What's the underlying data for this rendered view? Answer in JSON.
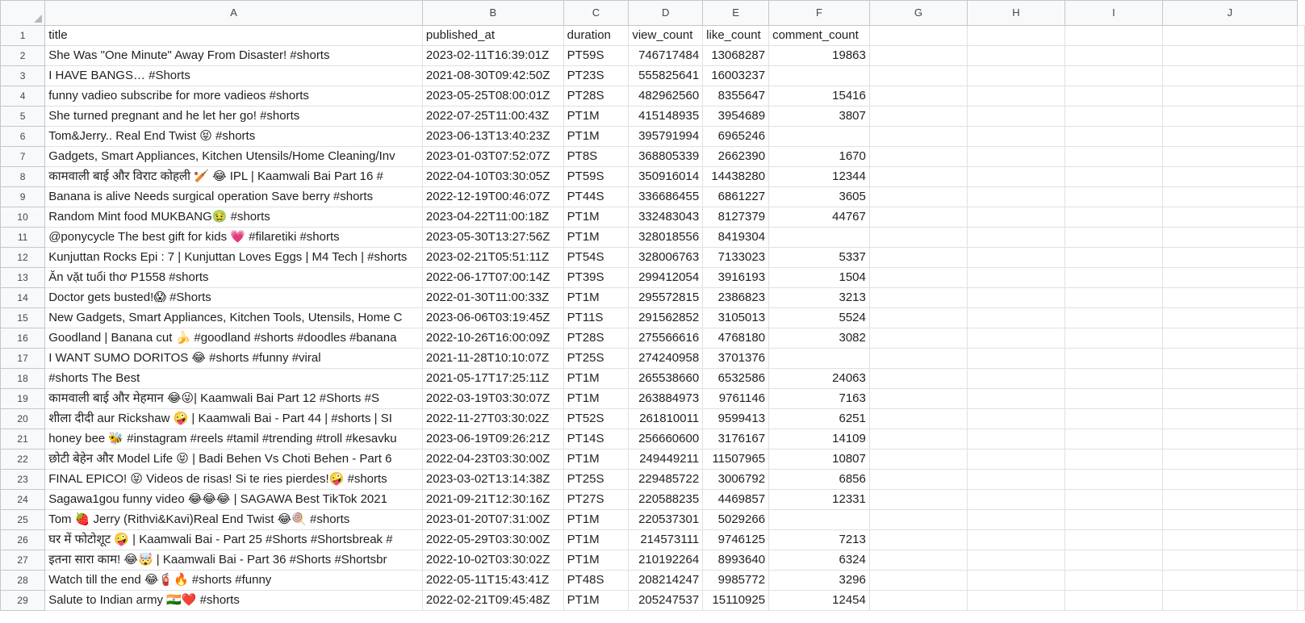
{
  "columns": [
    "A",
    "B",
    "C",
    "D",
    "E",
    "F",
    "G",
    "H",
    "I",
    "J"
  ],
  "header_row": [
    "title",
    "published_at",
    "duration",
    "view_count",
    "like_count",
    "comment_count"
  ],
  "rows": [
    {
      "n": "2",
      "title": "She Was \"One Minute\" Away From Disaster! #shorts",
      "published_at": "2023-02-11T16:39:01Z",
      "duration": "PT59S",
      "view_count": "746717484",
      "like_count": "13068287",
      "comment_count": "19863"
    },
    {
      "n": "3",
      "title": "I HAVE BANGS… #Shorts",
      "published_at": "2021-08-30T09:42:50Z",
      "duration": "PT23S",
      "view_count": "555825641",
      "like_count": "16003237",
      "comment_count": ""
    },
    {
      "n": "4",
      "title": "funny vadieo subscribe for more vadieos #shorts",
      "published_at": "2023-05-25T08:00:01Z",
      "duration": "PT28S",
      "view_count": "482962560",
      "like_count": "8355647",
      "comment_count": "15416"
    },
    {
      "n": "5",
      "title": "She turned pregnant and he let her go! #shorts",
      "published_at": "2022-07-25T11:00:43Z",
      "duration": "PT1M",
      "view_count": "415148935",
      "like_count": "3954689",
      "comment_count": "3807"
    },
    {
      "n": "6",
      "title": "Tom&Jerry.. Real End Twist 😝 #shorts",
      "published_at": "2023-06-13T13:40:23Z",
      "duration": "PT1M",
      "view_count": "395791994",
      "like_count": "6965246",
      "comment_count": ""
    },
    {
      "n": "7",
      "title": "Gadgets, Smart Appliances, Kitchen Utensils/Home Cleaning/Inv",
      "published_at": "2023-01-03T07:52:07Z",
      "duration": "PT8S",
      "view_count": "368805339",
      "like_count": "2662390",
      "comment_count": "1670"
    },
    {
      "n": "8",
      "title": "कामवाली बाई और विराट कोहली 🏏 😂 IPL | Kaamwali Bai Part 16 #",
      "published_at": "2022-04-10T03:30:05Z",
      "duration": "PT59S",
      "view_count": "350916014",
      "like_count": "14438280",
      "comment_count": "12344"
    },
    {
      "n": "9",
      "title": "Banana is alive  Needs surgical operation  Save berry #shorts",
      "published_at": "2022-12-19T00:46:07Z",
      "duration": "PT44S",
      "view_count": "336686455",
      "like_count": "6861227",
      "comment_count": "3605"
    },
    {
      "n": "10",
      "title": "Random Mint food MUKBANG🤢 #shorts",
      "published_at": "2023-04-22T11:00:18Z",
      "duration": "PT1M",
      "view_count": "332483043",
      "like_count": "8127379",
      "comment_count": "44767"
    },
    {
      "n": "11",
      "title": "@ponycycle The best gift for kids 💗 #filaretiki #shorts",
      "published_at": "2023-05-30T13:27:56Z",
      "duration": "PT1M",
      "view_count": "328018556",
      "like_count": "8419304",
      "comment_count": ""
    },
    {
      "n": "12",
      "title": "Kunjuttan Rocks Epi : 7 | Kunjuttan Loves Eggs | M4 Tech | #shorts",
      "published_at": "2023-02-21T05:51:11Z",
      "duration": "PT54S",
      "view_count": "328006763",
      "like_count": "7133023",
      "comment_count": "5337"
    },
    {
      "n": "13",
      "title": "Ăn vặt tuổi thơ P1558 #shorts",
      "published_at": "2022-06-17T07:00:14Z",
      "duration": "PT39S",
      "view_count": "299412054",
      "like_count": "3916193",
      "comment_count": "1504"
    },
    {
      "n": "14",
      "title": "Doctor gets busted!😱 #Shorts",
      "published_at": "2022-01-30T11:00:33Z",
      "duration": "PT1M",
      "view_count": "295572815",
      "like_count": "2386823",
      "comment_count": "3213"
    },
    {
      "n": "15",
      "title": "New Gadgets, Smart Appliances, Kitchen Tools, Utensils, Home C",
      "published_at": "2023-06-06T03:19:45Z",
      "duration": "PT11S",
      "view_count": "291562852",
      "like_count": "3105013",
      "comment_count": "5524"
    },
    {
      "n": "16",
      "title": "Goodland | Banana cut 🍌 #goodland #shorts #doodles #banana",
      "published_at": "2022-10-26T16:00:09Z",
      "duration": "PT28S",
      "view_count": "275566616",
      "like_count": "4768180",
      "comment_count": "3082"
    },
    {
      "n": "17",
      "title": "I WANT SUMO DORITOS 😂 #shorts #funny #viral",
      "published_at": "2021-11-28T10:10:07Z",
      "duration": "PT25S",
      "view_count": "274240958",
      "like_count": "3701376",
      "comment_count": ""
    },
    {
      "n": "18",
      "title": "#shorts The Best",
      "published_at": "2021-05-17T17:25:11Z",
      "duration": "PT1M",
      "view_count": "265538660",
      "like_count": "6532586",
      "comment_count": "24063"
    },
    {
      "n": "19",
      "title": "कामवाली बाई और मेहमान  😂😜| Kaamwali Bai Part 12 #Shorts #S",
      "published_at": "2022-03-19T03:30:07Z",
      "duration": "PT1M",
      "view_count": "263884973",
      "like_count": "9761146",
      "comment_count": "7163"
    },
    {
      "n": "20",
      "title": "शीला दीदी aur Rickshaw 🤪 | Kaamwali Bai - Part 44 | #shorts | SI",
      "published_at": "2022-11-27T03:30:02Z",
      "duration": "PT52S",
      "view_count": "261810011",
      "like_count": "9599413",
      "comment_count": "6251"
    },
    {
      "n": "21",
      "title": "honey bee 🐝  #instagram #reels #tamil #trending #troll #kesavku",
      "published_at": "2023-06-19T09:26:21Z",
      "duration": "PT14S",
      "view_count": "256660600",
      "like_count": "3176167",
      "comment_count": "14109"
    },
    {
      "n": "22",
      "title": "छोटी बेहेन और Model Life 😝 | Badi Behen Vs Choti Behen - Part 6",
      "published_at": "2022-04-23T03:30:00Z",
      "duration": "PT1M",
      "view_count": "249449211",
      "like_count": "11507965",
      "comment_count": "10807"
    },
    {
      "n": "23",
      "title": "FINAL EPICO! 😝 Videos de risas! Si te ries pierdes!🤪 #shorts",
      "published_at": "2023-03-02T13:14:38Z",
      "duration": "PT25S",
      "view_count": "229485722",
      "like_count": "3006792",
      "comment_count": "6856"
    },
    {
      "n": "24",
      "title": "Sagawa1gou funny video 😂😂😂 | SAGAWA Best TikTok 2021",
      "published_at": "2021-09-21T12:30:16Z",
      "duration": "PT27S",
      "view_count": "220588235",
      "like_count": "4469857",
      "comment_count": "12331"
    },
    {
      "n": "25",
      "title": "Tom 🍓 Jerry (Rithvi&Kavi)Real End Twist 😂🍭 #shorts",
      "published_at": "2023-01-20T07:31:00Z",
      "duration": "PT1M",
      "view_count": "220537301",
      "like_count": "5029266",
      "comment_count": ""
    },
    {
      "n": "26",
      "title": "घर में फोटोशूट 🤪 | Kaamwali Bai - Part 25 #Shorts #Shortsbreak #",
      "published_at": "2022-05-29T03:30:00Z",
      "duration": "PT1M",
      "view_count": "214573111",
      "like_count": "9746125",
      "comment_count": "7213"
    },
    {
      "n": "27",
      "title": "इतना सारा काम! 😂🤯 | Kaamwali Bai - Part 36 #Shorts #Shortsbr",
      "published_at": "2022-10-02T03:30:02Z",
      "duration": "PT1M",
      "view_count": "210192264",
      "like_count": "8993640",
      "comment_count": "6324"
    },
    {
      "n": "28",
      "title": "Watch till the end 😂🧯🔥 #shorts #funny",
      "published_at": "2022-05-11T15:43:41Z",
      "duration": "PT48S",
      "view_count": "208214247",
      "like_count": "9985772",
      "comment_count": "3296"
    },
    {
      "n": "29",
      "title": "Salute to Indian army 🇮🇳❤️ #shorts",
      "published_at": "2022-02-21T09:45:48Z",
      "duration": "PT1M",
      "view_count": "205247537",
      "like_count": "15110925",
      "comment_count": "12454"
    }
  ]
}
